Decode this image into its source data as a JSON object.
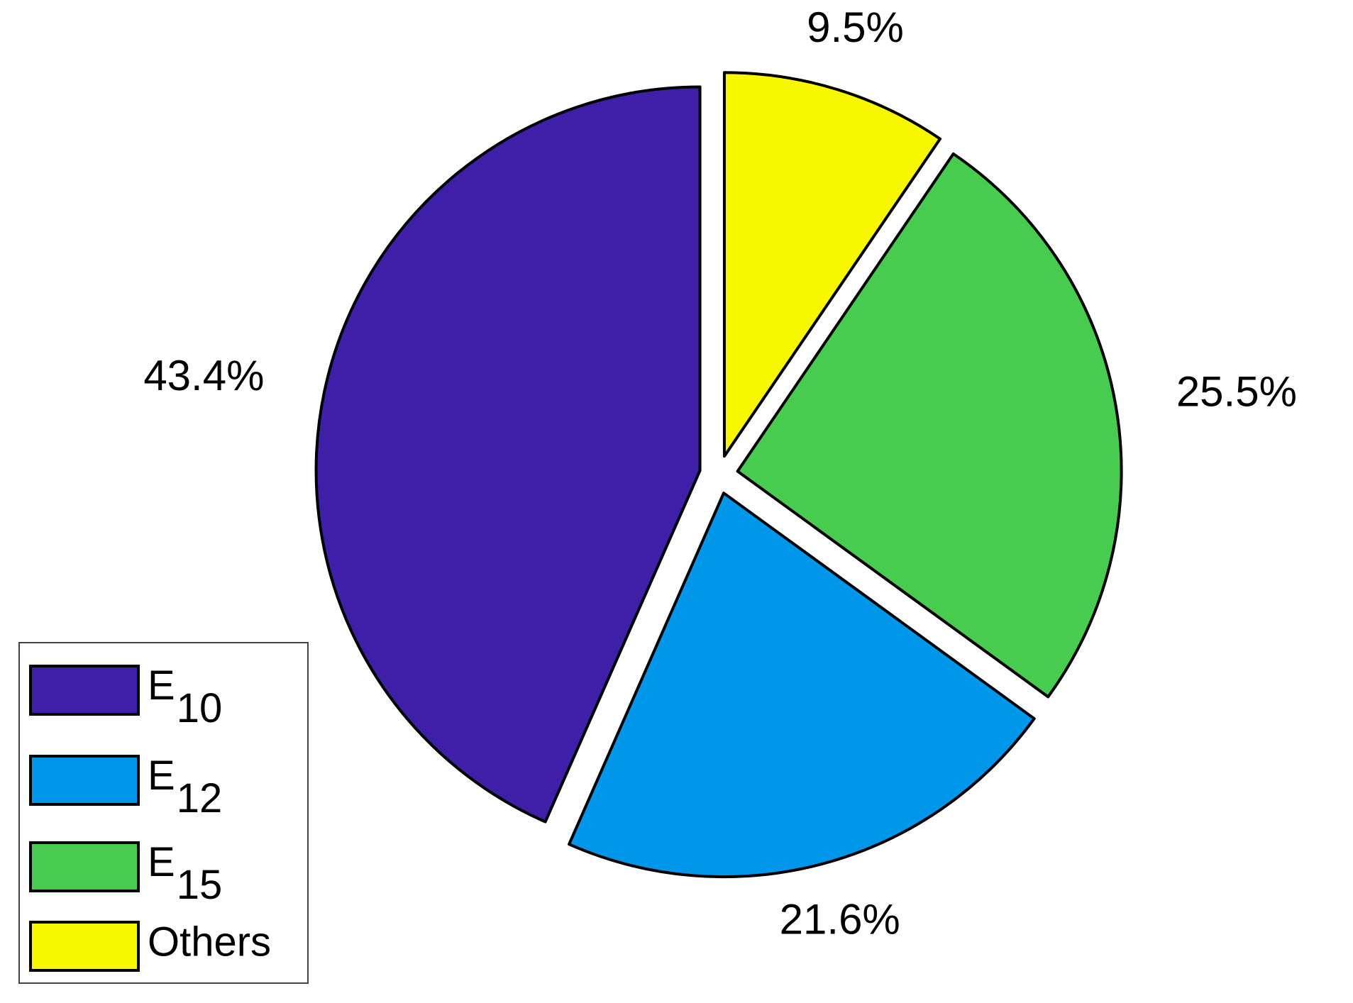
{
  "chart_data": {
    "type": "pie",
    "categories": [
      "E10",
      "E12",
      "E15",
      "Others"
    ],
    "values": [
      43.4,
      21.6,
      25.5,
      9.5
    ],
    "value_labels": [
      "43.4%",
      "21.6%",
      "25.5%",
      "9.5%"
    ],
    "colors": [
      "#3f1fa8",
      "#0096ea",
      "#47cc4f",
      "#f7f700"
    ],
    "explode": true,
    "legend": "lower-left"
  }
}
